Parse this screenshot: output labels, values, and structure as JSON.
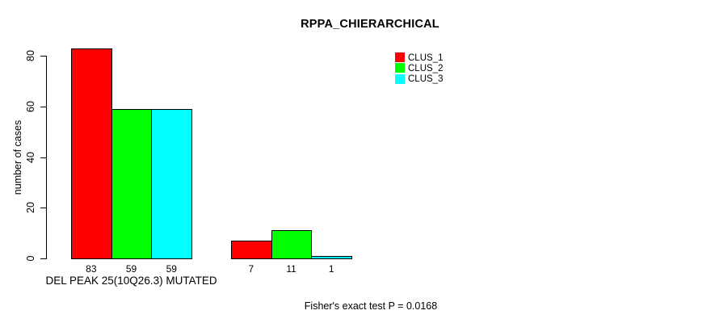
{
  "chart_data": {
    "type": "bar",
    "title": "RPPA_CHIERARCHICAL",
    "xlabel": "",
    "ylabel": "number of cases",
    "ylim": [
      0,
      80
    ],
    "yticks": [
      0,
      20,
      40,
      60,
      80
    ],
    "grid": false,
    "legend_position": "top-right",
    "categories": [
      "DEL PEAK 25(10Q26.3) MUTATED",
      ""
    ],
    "series": [
      {
        "name": "CLUS_1",
        "color": "#FF0000",
        "values": [
          83,
          7
        ]
      },
      {
        "name": "CLUS_2",
        "color": "#00FF00",
        "values": [
          59,
          11
        ]
      },
      {
        "name": "CLUS_3",
        "color": "#00FFFF",
        "values": [
          59,
          1
        ]
      }
    ],
    "bar_value_labels": [
      [
        83,
        59,
        59
      ],
      [
        7,
        11,
        1
      ]
    ],
    "footnote": "Fisher's exact test P = 0.0168"
  }
}
